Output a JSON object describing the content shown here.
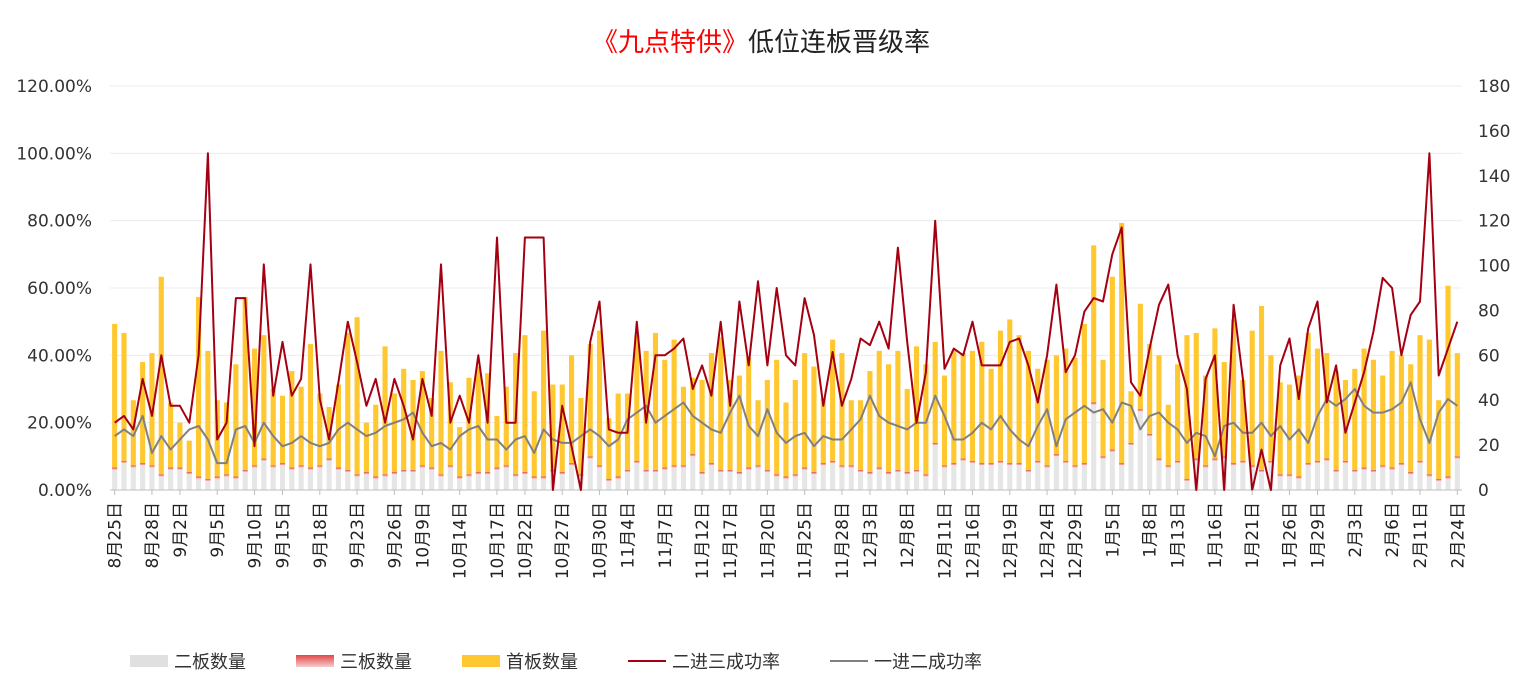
{
  "chart_data": {
    "type": "bar+line",
    "title_highlight": "《九点特供》",
    "title_rest": "低位连板晋级率",
    "left_axis": {
      "ticks": [
        "0.00%",
        "20.00%",
        "40.00%",
        "60.00%",
        "80.00%",
        "100.00%",
        "120.00%"
      ],
      "range": [
        0,
        120
      ]
    },
    "right_axis": {
      "ticks": [
        "0",
        "20",
        "40",
        "60",
        "80",
        "100",
        "120",
        "140",
        "160",
        "180"
      ],
      "range": [
        0,
        180
      ]
    },
    "x_tick_labels": [
      "8月25日",
      "8月28日",
      "9月2日",
      "9月5日",
      "9月10日",
      "9月15日",
      "9月18日",
      "9月23日",
      "9月26日",
      "10月9日",
      "10月14日",
      "10月17日",
      "10月22日",
      "10月27日",
      "10月30日",
      "11月4日",
      "11月7日",
      "11月12日",
      "11月17日",
      "11月20日",
      "11月25日",
      "11月28日",
      "12月3日",
      "12月8日",
      "12月11日",
      "12月16日",
      "12月19日",
      "12月24日",
      "12月29日",
      "1月5日",
      "1月8日",
      "1月13日",
      "1月16日",
      "1月21日",
      "1月26日",
      "1月29日",
      "2月3日",
      "2月6日",
      "2月11日",
      "2月24日"
    ],
    "series": [
      {
        "name": "二板数量",
        "color": "#e6e6e6",
        "axis": "right",
        "kind": "bar",
        "values": [
          9,
          12,
          10,
          11,
          10,
          6,
          9,
          9,
          7,
          5,
          4,
          5,
          6,
          5,
          8,
          10,
          13,
          10,
          11,
          9,
          10,
          9,
          10,
          13,
          9,
          8,
          6,
          7,
          5,
          6,
          7,
          8,
          8,
          10,
          9,
          6,
          10,
          5,
          6,
          7,
          7,
          9,
          10,
          6,
          7,
          5,
          5,
          8,
          7,
          11,
          6,
          14,
          10,
          4,
          5,
          8,
          12,
          8,
          8,
          9,
          10,
          10,
          15,
          7,
          11,
          8,
          8,
          7,
          9,
          10,
          8,
          6,
          5,
          6,
          9,
          7,
          11,
          12,
          10,
          10,
          8,
          7,
          9,
          7,
          8,
          7,
          8,
          6,
          20,
          10,
          11,
          13,
          12,
          11,
          11,
          12,
          11,
          11,
          8,
          12,
          10,
          15,
          12,
          10,
          11,
          38,
          14,
          17,
          11,
          20,
          35,
          24,
          13,
          10,
          12,
          4,
          13,
          10,
          13,
          14,
          11,
          12,
          10,
          8,
          12,
          6,
          6,
          5,
          11,
          12,
          13,
          8,
          12,
          8,
          9,
          8,
          10,
          9,
          11,
          7,
          12,
          6,
          4,
          5,
          14
        ]
      },
      {
        "name": "三板数量",
        "color": "#e04848",
        "axis": "right",
        "kind": "bar",
        "values": [
          1,
          1,
          1,
          1,
          1,
          1,
          1,
          1,
          1,
          1,
          1,
          1,
          1,
          1,
          1,
          1,
          1,
          1,
          1,
          1,
          1,
          1,
          1,
          1,
          1,
          1,
          1,
          1,
          1,
          1,
          1,
          1,
          1,
          1,
          1,
          1,
          1,
          1,
          1,
          1,
          1,
          1,
          1,
          1,
          1,
          1,
          1,
          1,
          1,
          1,
          1,
          1,
          1,
          1,
          1,
          1,
          1,
          1,
          1,
          1,
          1,
          1,
          1,
          1,
          1,
          1,
          1,
          1,
          1,
          1,
          1,
          1,
          1,
          1,
          1,
          1,
          1,
          1,
          1,
          1,
          1,
          1,
          1,
          1,
          1,
          1,
          1,
          1,
          1,
          1,
          1,
          1,
          1,
          1,
          1,
          1,
          1,
          1,
          1,
          1,
          1,
          1,
          1,
          1,
          1,
          1,
          1,
          1,
          1,
          1,
          1,
          1,
          1,
          1,
          1,
          1,
          1,
          1,
          1,
          1,
          1,
          1,
          1,
          1,
          1,
          1,
          1,
          1,
          1,
          1,
          1,
          1,
          1,
          1,
          1,
          1,
          1,
          1,
          1,
          1,
          1,
          1,
          1,
          1,
          1
        ]
      },
      {
        "name": "首板数量",
        "color": "#ffc830",
        "axis": "right",
        "kind": "bar",
        "values": [
          64,
          57,
          29,
          45,
          50,
          88,
          29,
          20,
          14,
          80,
          57,
          34,
          32,
          50,
          77,
          52,
          55,
          34,
          30,
          43,
          35,
          55,
          32,
          23,
          37,
          61,
          70,
          22,
          32,
          57,
          35,
          45,
          40,
          42,
          31,
          55,
          37,
          22,
          43,
          47,
          44,
          23,
          35,
          54,
          61,
          38,
          65,
          38,
          39,
          48,
          34,
          50,
          60,
          27,
          37,
          34,
          56,
          53,
          61,
          48,
          56,
          35,
          34,
          41,
          49,
          59,
          40,
          43,
          49,
          29,
          40,
          51,
          33,
          42,
          51,
          47,
          29,
          54,
          50,
          29,
          31,
          45,
          52,
          48,
          53,
          37,
          55,
          49,
          45,
          40,
          50,
          47,
          49,
          54,
          42,
          58,
          64,
          57,
          53,
          41,
          47,
          44,
          50,
          48,
          62,
          70,
          43,
          77,
          107,
          23,
          47,
          40,
          46,
          27,
          43,
          64,
          56,
          40,
          58,
          42,
          64,
          36,
          60,
          73,
          47,
          41,
          40,
          45,
          58,
          50,
          47,
          44,
          36,
          45,
          53,
          49,
          40,
          52,
          48,
          48,
          56,
          60,
          35,
          85,
          46
        ]
      },
      {
        "name": "二进三成功率",
        "color": "#a50012",
        "axis": "left",
        "kind": "line",
        "values": [
          20,
          22,
          18,
          33,
          22,
          40,
          25,
          25,
          20,
          40,
          100,
          15,
          20,
          57,
          57,
          13,
          67,
          28,
          44,
          28,
          33,
          67,
          27,
          15,
          32,
          50,
          38,
          25,
          33,
          20,
          33,
          25,
          15,
          33,
          22,
          67,
          20,
          28,
          20,
          40,
          20,
          75,
          20,
          20,
          75,
          75,
          75,
          0,
          25,
          13,
          0,
          44,
          56,
          18,
          17,
          17,
          50,
          20,
          40,
          40,
          42,
          45,
          30,
          37,
          28,
          50,
          25,
          56,
          37,
          62,
          37,
          60,
          40,
          37,
          57,
          46,
          25,
          41,
          25,
          33,
          45,
          43,
          50,
          42,
          72,
          44,
          20,
          35,
          80,
          36,
          42,
          40,
          50,
          37,
          37,
          37,
          44,
          45,
          37,
          26,
          40,
          61,
          35,
          40,
          53,
          57,
          56,
          70,
          78,
          32,
          28,
          42,
          55,
          61,
          40,
          30,
          0,
          33,
          40,
          0,
          55,
          33,
          0,
          12,
          0,
          37,
          45,
          27,
          48,
          56,
          26,
          37,
          17,
          26,
          35,
          47,
          63,
          60,
          40,
          52,
          56,
          100,
          34,
          42,
          50
        ]
      },
      {
        "name": "一进二成功率",
        "color": "#808080",
        "axis": "left",
        "kind": "line",
        "values": [
          16,
          18,
          16,
          22,
          11,
          16,
          12,
          15,
          18,
          19,
          15,
          8,
          8,
          18,
          19,
          14,
          20,
          16,
          13,
          14,
          16,
          14,
          13,
          14,
          18,
          20,
          18,
          16,
          17,
          19,
          20,
          21,
          23,
          17,
          13,
          14,
          12,
          16,
          18,
          19,
          15,
          15,
          12,
          15,
          16,
          11,
          18,
          15,
          14,
          14,
          16,
          18,
          16,
          13,
          15,
          21,
          23,
          25,
          20,
          22,
          24,
          26,
          22,
          20,
          18,
          17,
          23,
          28,
          19,
          16,
          24,
          17,
          14,
          16,
          17,
          13,
          16,
          15,
          15,
          18,
          21,
          28,
          22,
          20,
          19,
          18,
          20,
          20,
          28,
          22,
          15,
          15,
          17,
          20,
          18,
          22,
          18,
          15,
          13,
          19,
          24,
          13,
          21,
          23,
          25,
          23,
          24,
          20,
          26,
          25,
          18,
          22,
          23,
          20,
          18,
          14,
          17,
          16,
          10,
          19,
          20,
          17,
          17,
          20,
          16,
          19,
          15,
          18,
          14,
          22,
          27,
          25,
          27,
          30,
          25,
          23,
          23,
          24,
          26,
          32,
          21,
          14,
          23,
          27,
          25
        ]
      }
    ]
  },
  "legend": [
    {
      "label": "二板数量",
      "icon": "gray-box"
    },
    {
      "label": "三板数量",
      "icon": "red-box"
    },
    {
      "label": "首板数量",
      "icon": "yellow-box"
    },
    {
      "label": "二进三成功率",
      "icon": "dark-red-line"
    },
    {
      "label": "一进二成功率",
      "icon": "gray-line"
    }
  ]
}
